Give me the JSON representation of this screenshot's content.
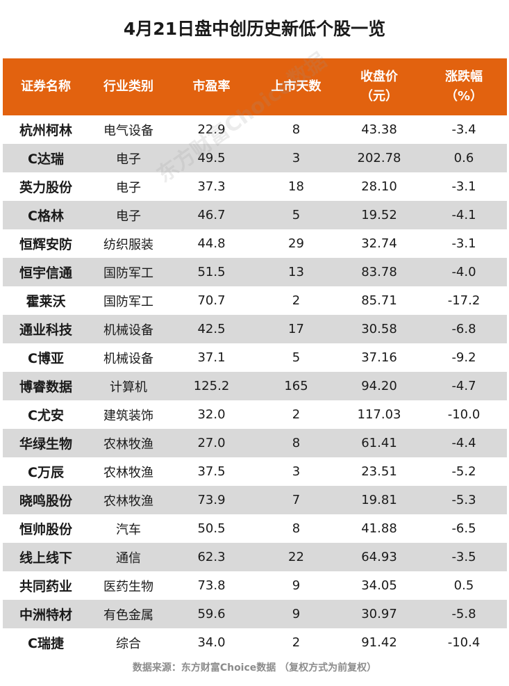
{
  "title": "4月21日盘中创历史新低个股一览",
  "headers": {
    "name": "证券名称",
    "industry": "行业类别",
    "pe": "市盈率",
    "days": "上市天数",
    "close_line1": "收盘价",
    "close_line2": "（元）",
    "change_line1": "涨跌幅",
    "change_line2": "（%）"
  },
  "rows": [
    {
      "name": "杭州柯林",
      "industry": "电气设备",
      "pe": "22.9",
      "days": "8",
      "close": "43.38",
      "change": "-3.4"
    },
    {
      "name": "C达瑞",
      "industry": "电子",
      "pe": "49.5",
      "days": "3",
      "close": "202.78",
      "change": "0.6"
    },
    {
      "name": "英力股份",
      "industry": "电子",
      "pe": "37.3",
      "days": "18",
      "close": "28.10",
      "change": "-3.1"
    },
    {
      "name": "C格林",
      "industry": "电子",
      "pe": "46.7",
      "days": "5",
      "close": "19.52",
      "change": "-4.1"
    },
    {
      "name": "恒辉安防",
      "industry": "纺织服装",
      "pe": "44.8",
      "days": "29",
      "close": "32.74",
      "change": "-3.1"
    },
    {
      "name": "恒宇信通",
      "industry": "国防军工",
      "pe": "51.5",
      "days": "13",
      "close": "83.78",
      "change": "-4.0"
    },
    {
      "name": "霍莱沃",
      "industry": "国防军工",
      "pe": "70.7",
      "days": "2",
      "close": "85.71",
      "change": "-17.2"
    },
    {
      "name": "通业科技",
      "industry": "机械设备",
      "pe": "42.5",
      "days": "17",
      "close": "30.58",
      "change": "-6.8"
    },
    {
      "name": "C博亚",
      "industry": "机械设备",
      "pe": "37.1",
      "days": "5",
      "close": "37.16",
      "change": "-9.2"
    },
    {
      "name": "博睿数据",
      "industry": "计算机",
      "pe": "125.2",
      "days": "165",
      "close": "94.20",
      "change": "-4.7"
    },
    {
      "name": "C尤安",
      "industry": "建筑装饰",
      "pe": "32.0",
      "days": "2",
      "close": "117.03",
      "change": "-10.0"
    },
    {
      "name": "华绿生物",
      "industry": "农林牧渔",
      "pe": "27.0",
      "days": "8",
      "close": "61.41",
      "change": "-4.4"
    },
    {
      "name": "C万辰",
      "industry": "农林牧渔",
      "pe": "37.5",
      "days": "3",
      "close": "23.51",
      "change": "-5.2"
    },
    {
      "name": "晓鸣股份",
      "industry": "农林牧渔",
      "pe": "73.9",
      "days": "7",
      "close": "19.81",
      "change": "-5.3"
    },
    {
      "name": "恒帅股份",
      "industry": "汽车",
      "pe": "50.5",
      "days": "8",
      "close": "41.88",
      "change": "-6.5"
    },
    {
      "name": "线上线下",
      "industry": "通信",
      "pe": "62.3",
      "days": "22",
      "close": "64.93",
      "change": "-3.5"
    },
    {
      "name": "共同药业",
      "industry": "医药生物",
      "pe": "73.8",
      "days": "9",
      "close": "34.05",
      "change": "0.5"
    },
    {
      "name": "中洲特材",
      "industry": "有色金属",
      "pe": "59.6",
      "days": "9",
      "close": "30.97",
      "change": "-5.8"
    },
    {
      "name": "C瑞捷",
      "industry": "综合",
      "pe": "34.0",
      "days": "2",
      "close": "91.42",
      "change": "-10.4"
    }
  ],
  "source": "数据来源：东方财富Choice数据 （复权方式为前复权）",
  "watermark": "东方财富Choice数据"
}
